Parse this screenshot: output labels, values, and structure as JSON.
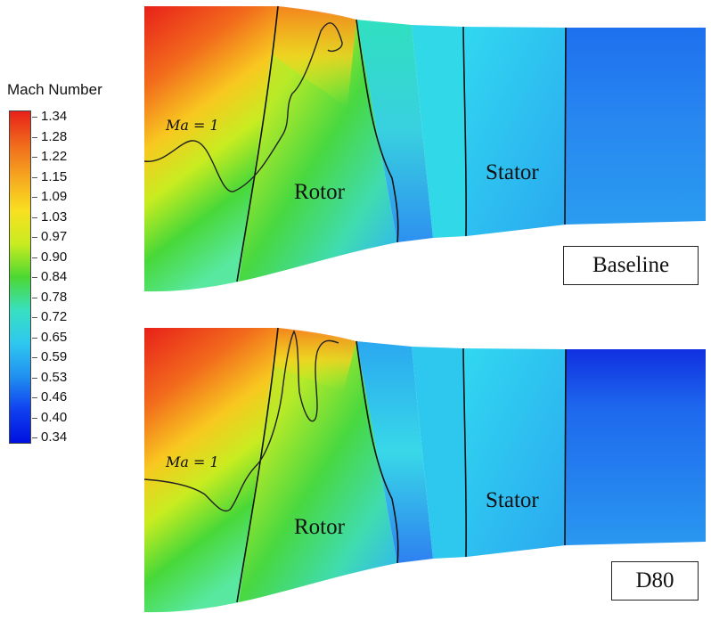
{
  "legend": {
    "title": "Mach Number",
    "ticks": [
      "1.34",
      "1.28",
      "1.22",
      "1.15",
      "1.09",
      "1.03",
      "0.97",
      "0.90",
      "0.84",
      "0.78",
      "0.72",
      "0.65",
      "0.59",
      "0.53",
      "0.46",
      "0.40",
      "0.34"
    ],
    "colors": [
      "#e8201a",
      "#f06a1c",
      "#f6a820",
      "#f8e020",
      "#c8ec20",
      "#4cd832",
      "#38e0c0",
      "#2ec8f0",
      "#2090f0",
      "#1040f0",
      "#0010e0"
    ]
  },
  "panels": [
    {
      "case_label": "Baseline",
      "rotor_label": "Rotor",
      "stator_label": "Stator",
      "sonic_label": "Ma = 1"
    },
    {
      "case_label": "D80",
      "rotor_label": "Rotor",
      "stator_label": "Stator",
      "sonic_label": "Ma = 1"
    }
  ]
}
